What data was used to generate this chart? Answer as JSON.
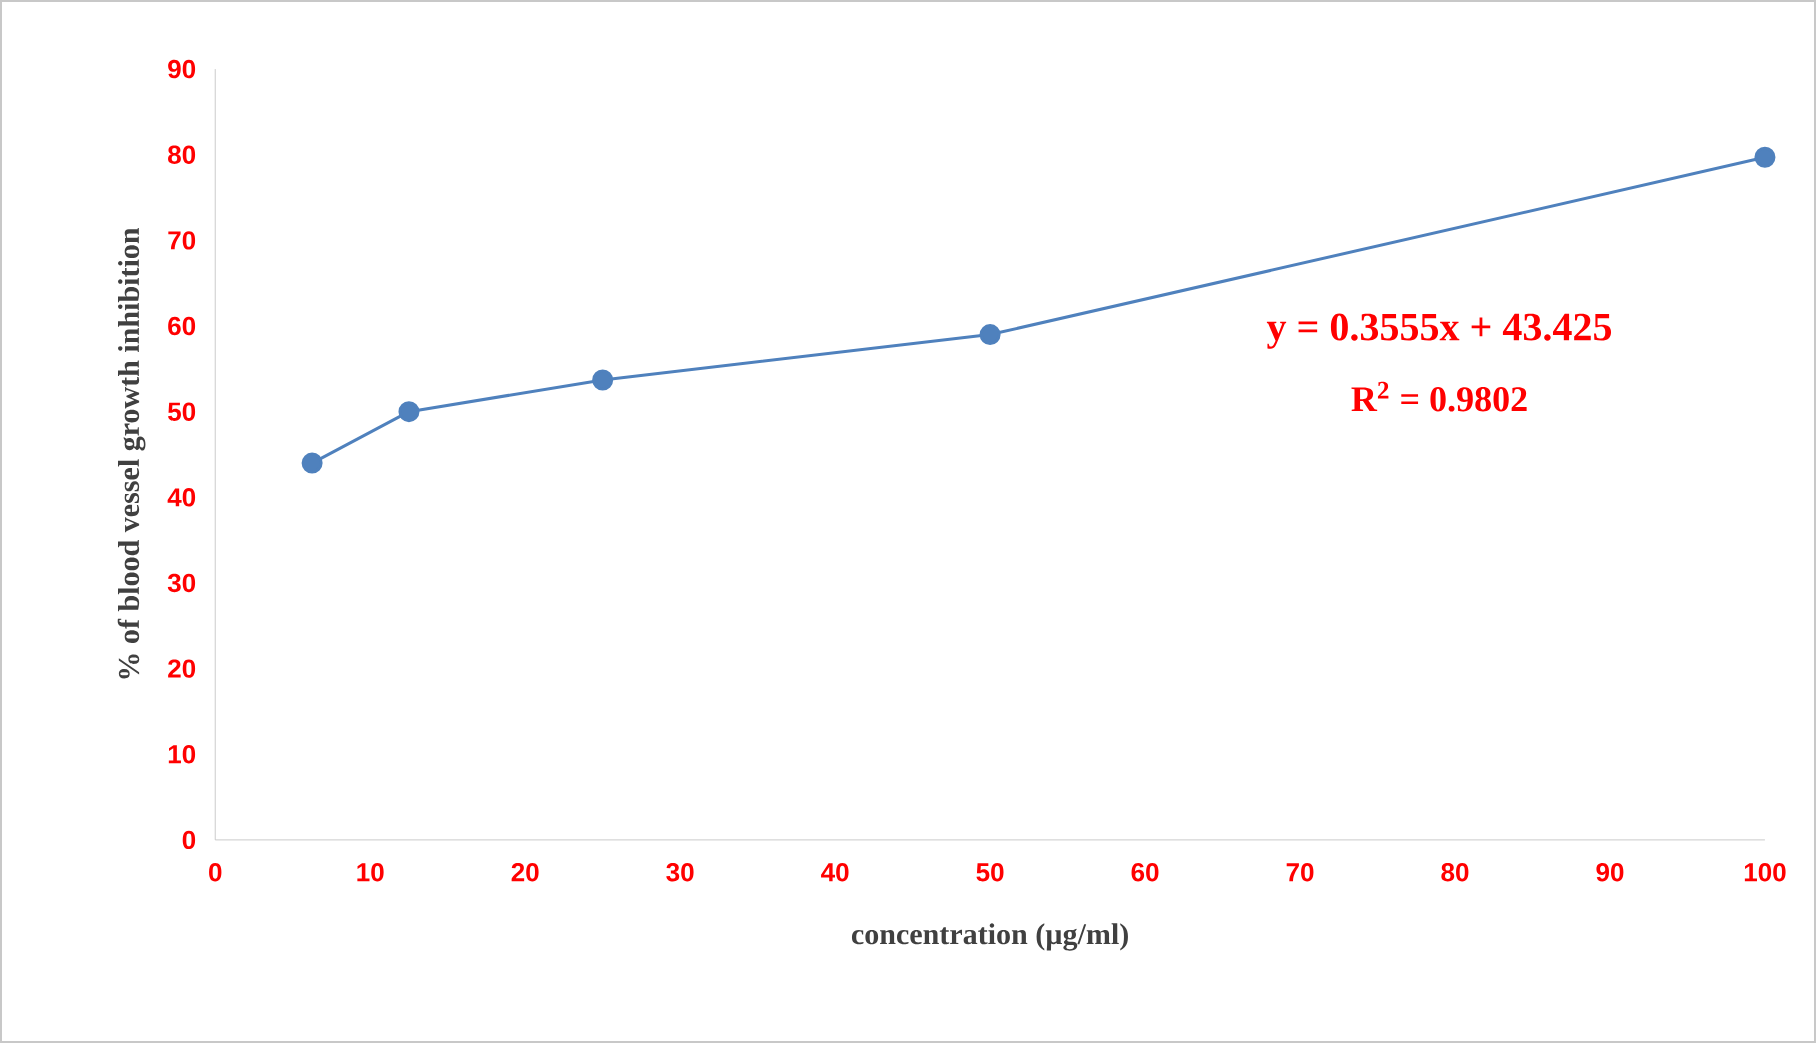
{
  "chart_data": {
    "type": "line",
    "xlabel": "concentration (µg/ml)",
    "ylabel": "% of blood vessel  growth inhibition",
    "x": [
      6.25,
      12.5,
      25,
      50,
      100
    ],
    "series": [
      {
        "color": "#4f81bd",
        "values": [
          44,
          50,
          53.7,
          59,
          79.7
        ]
      }
    ],
    "xlim": [
      0,
      100
    ],
    "xticks": [
      0,
      10,
      20,
      30,
      40,
      50,
      60,
      70,
      80,
      90,
      100
    ],
    "ylim": [
      0,
      90
    ],
    "yticks": [
      0,
      10,
      20,
      30,
      40,
      50,
      60,
      70,
      80,
      90
    ],
    "marker": "circle",
    "line_style": "solid",
    "annotations": [
      "y = 0.3555x + 43.425",
      "R$^{2}$ = 0.9802"
    ]
  }
}
